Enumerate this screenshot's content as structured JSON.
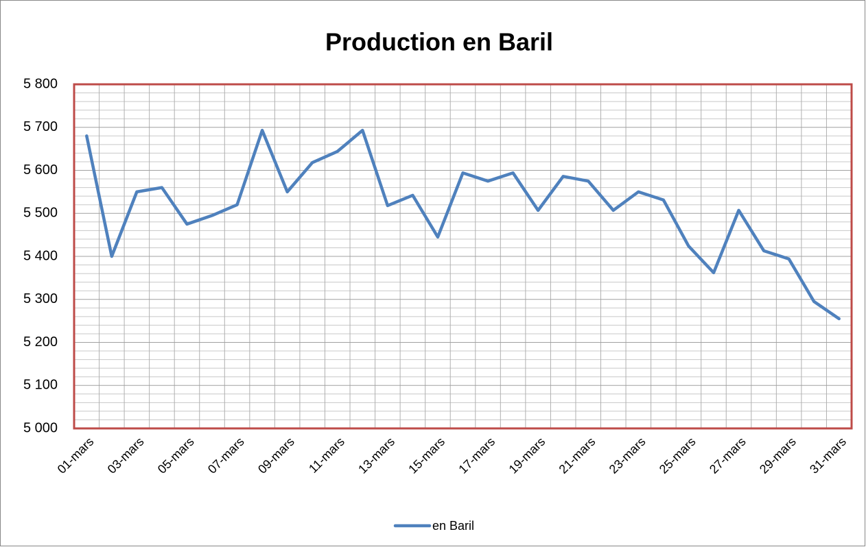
{
  "chart_data": {
    "type": "line",
    "title": "Production en Baril",
    "categories": [
      "01-mars",
      null,
      "03-mars",
      null,
      "05-mars",
      null,
      "07-mars",
      null,
      "09-mars",
      null,
      "11-mars",
      null,
      "13-mars",
      null,
      "15-mars",
      null,
      "17-mars",
      null,
      "19-mars",
      null,
      "21-mars",
      null,
      "23-mars",
      null,
      "25-mars",
      null,
      "27-mars",
      null,
      "29-mars",
      null,
      "31-mars"
    ],
    "series": [
      {
        "name": "en Baril",
        "color": "#4f81bd",
        "values": [
          5680,
          5400,
          5550,
          5560,
          5475,
          5495,
          5520,
          5693,
          5550,
          5618,
          5644,
          5693,
          5518,
          5542,
          5445,
          5594,
          5575,
          5594,
          5507,
          5586,
          5575,
          5507,
          5550,
          5531,
          5424,
          5362,
          5507,
          5413,
          5394,
          5295,
          5255
        ]
      }
    ],
    "ylim": [
      5000,
      5800
    ],
    "yticks": [
      {
        "value": 5000,
        "label": "5 000"
      },
      {
        "value": 5100,
        "label": "5 100"
      },
      {
        "value": 5200,
        "label": "5 200"
      },
      {
        "value": 5300,
        "label": "5 300"
      },
      {
        "value": 5400,
        "label": "5 400"
      },
      {
        "value": 5500,
        "label": "5 500"
      },
      {
        "value": 5600,
        "label": "5 600"
      },
      {
        "value": 5700,
        "label": "5 700"
      },
      {
        "value": 5800,
        "label": "5 800"
      }
    ],
    "grid": true,
    "legend": "bottom"
  }
}
